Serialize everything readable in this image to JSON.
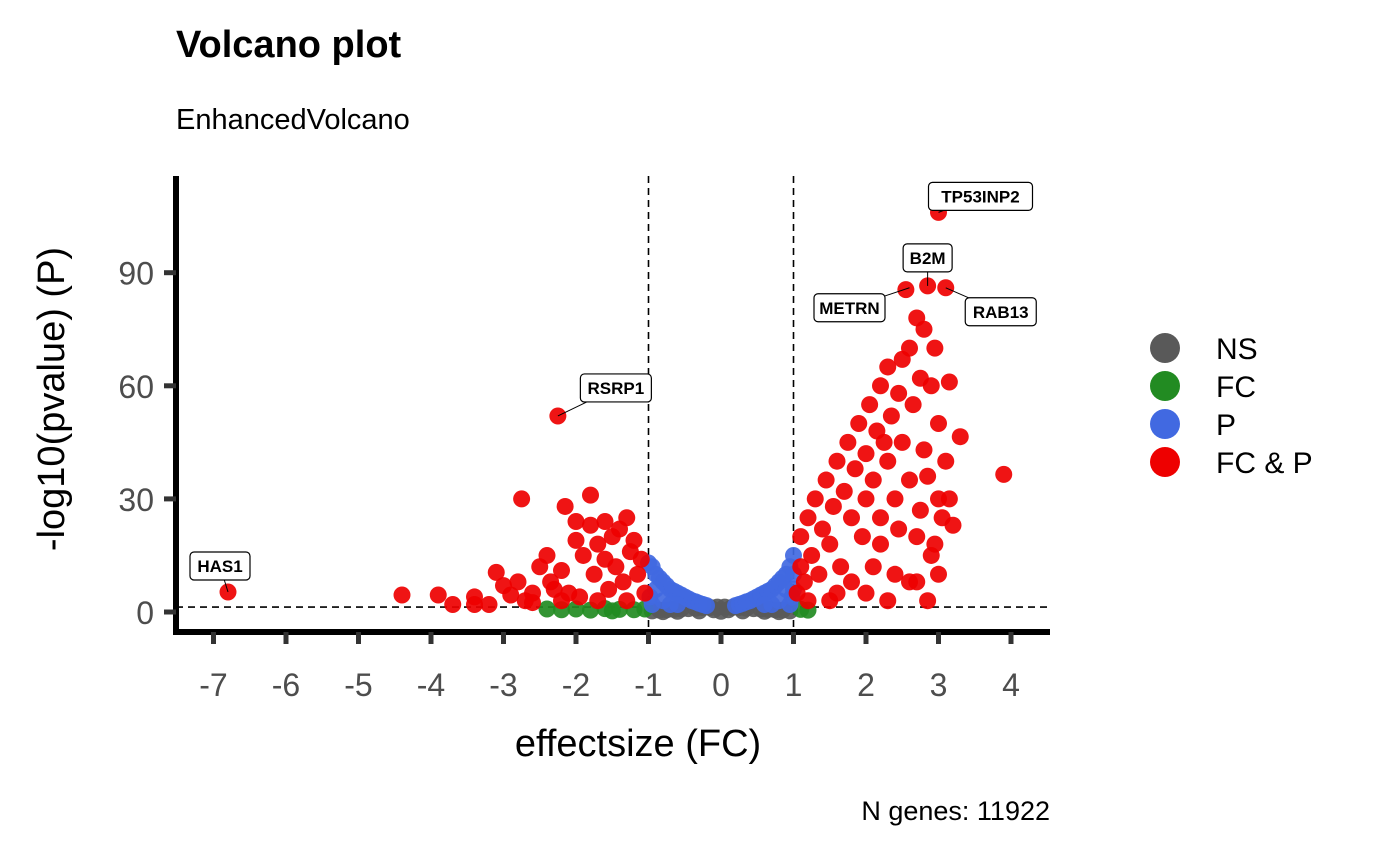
{
  "chart_data": {
    "type": "scatter",
    "title": "Volcano plot",
    "subtitle": "EnhancedVolcano",
    "caption": "N genes: 11922",
    "xlabel": "effectsize (FC)",
    "ylabel": "-log10(pvalue) (P)",
    "xlim": [
      -7.5,
      4.5
    ],
    "ylim": [
      -5,
      116
    ],
    "x_ticks": [
      -7,
      -6,
      -5,
      -4,
      -3,
      -2,
      -1,
      0,
      1,
      2,
      3,
      4
    ],
    "y_ticks": [
      0,
      30,
      60,
      90
    ],
    "cutoffs": {
      "fc": [
        -1,
        1
      ],
      "p": 1.3
    },
    "legend": {
      "position": "right",
      "entries": [
        {
          "name": "NS",
          "color": "#595959"
        },
        {
          "name": "FC",
          "color": "#228B22"
        },
        {
          "name": "P",
          "color": "#4169E1"
        },
        {
          "name": "FC & P",
          "color": "#EE0000"
        }
      ]
    },
    "labels": [
      {
        "text": "HAS1",
        "x": -6.8,
        "y": 5.3
      },
      {
        "text": "RSRP1",
        "x": -2.25,
        "y": 52
      },
      {
        "text": "TP53INP2",
        "x": 3.0,
        "y": 106
      },
      {
        "text": "B2M",
        "x": 2.85,
        "y": 86.5
      },
      {
        "text": "METRN",
        "x": 2.6,
        "y": 86
      },
      {
        "text": "RAB13",
        "x": 3.1,
        "y": 86
      }
    ],
    "series": [
      {
        "name": "NS",
        "color": "#595959",
        "points": [
          [
            -0.95,
            0.3
          ],
          [
            -0.85,
            0.5
          ],
          [
            -0.75,
            0.6
          ],
          [
            -0.65,
            0.7
          ],
          [
            -0.55,
            0.8
          ],
          [
            -0.45,
            0.9
          ],
          [
            -0.35,
            1.0
          ],
          [
            -0.25,
            1.2
          ],
          [
            -0.15,
            1.2
          ],
          [
            -0.05,
            1.3
          ],
          [
            0.05,
            1.3
          ],
          [
            0.15,
            1.2
          ],
          [
            0.25,
            1.2
          ],
          [
            0.35,
            1.0
          ],
          [
            0.45,
            0.9
          ],
          [
            0.55,
            0.8
          ],
          [
            0.65,
            0.7
          ],
          [
            0.75,
            0.6
          ],
          [
            0.85,
            0.5
          ],
          [
            0.95,
            0.3
          ],
          [
            -0.6,
            0.2
          ],
          [
            -0.3,
            0.3
          ],
          [
            0,
            0.2
          ],
          [
            0.3,
            0.3
          ],
          [
            0.6,
            0.2
          ],
          [
            -0.1,
            0.6
          ],
          [
            0.1,
            0.6
          ],
          [
            -0.8,
            0.1
          ],
          [
            0.8,
            0.1
          ]
        ]
      },
      {
        "name": "FC",
        "color": "#228B22",
        "points": [
          [
            -2.2,
            0.6
          ],
          [
            -2.0,
            0.8
          ],
          [
            -1.8,
            0.5
          ],
          [
            -1.6,
            0.9
          ],
          [
            -1.4,
            0.7
          ],
          [
            -1.2,
            0.6
          ],
          [
            -1.05,
            0.8
          ],
          [
            -2.4,
            0.8
          ],
          [
            -1.5,
            0.3
          ],
          [
            1.1,
            0.7
          ],
          [
            1.2,
            0.5
          ]
        ]
      },
      {
        "name": "P",
        "color": "#4169E1",
        "points": [
          [
            -1.0,
            13
          ],
          [
            -0.95,
            12
          ],
          [
            -0.9,
            10
          ],
          [
            -0.85,
            9
          ],
          [
            -0.8,
            8
          ],
          [
            -0.75,
            7
          ],
          [
            -0.7,
            6
          ],
          [
            -0.65,
            5.5
          ],
          [
            -0.6,
            5
          ],
          [
            -0.55,
            4.5
          ],
          [
            -0.5,
            4
          ],
          [
            -0.45,
            3.5
          ],
          [
            -0.4,
            3
          ],
          [
            -0.35,
            2.7
          ],
          [
            -0.3,
            2.3
          ],
          [
            -0.25,
            2
          ],
          [
            -0.2,
            1.7
          ],
          [
            -0.98,
            4
          ],
          [
            -0.95,
            2
          ],
          [
            -0.9,
            6
          ],
          [
            -0.8,
            3
          ],
          [
            -0.7,
            2
          ],
          [
            -0.6,
            2
          ],
          [
            0.2,
            1.7
          ],
          [
            0.25,
            2
          ],
          [
            0.3,
            2.3
          ],
          [
            0.35,
            2.7
          ],
          [
            0.4,
            3
          ],
          [
            0.45,
            3.5
          ],
          [
            0.5,
            4
          ],
          [
            0.55,
            4.5
          ],
          [
            0.6,
            5
          ],
          [
            0.65,
            5.5
          ],
          [
            0.7,
            6
          ],
          [
            0.75,
            7
          ],
          [
            0.8,
            8
          ],
          [
            0.85,
            9
          ],
          [
            0.9,
            10
          ],
          [
            0.95,
            12
          ],
          [
            1.0,
            15
          ],
          [
            0.98,
            4
          ],
          [
            0.95,
            2
          ],
          [
            0.9,
            6
          ],
          [
            0.8,
            3
          ],
          [
            0.7,
            2
          ],
          [
            0.6,
            2
          ],
          [
            1.0,
            10
          ],
          [
            1.0,
            6
          ]
        ]
      },
      {
        "name": "FC & P",
        "color": "#EE0000",
        "points": [
          [
            -6.8,
            5.3
          ],
          [
            -4.4,
            4.5
          ],
          [
            -3.9,
            4.5
          ],
          [
            -3.7,
            2
          ],
          [
            -3.4,
            4
          ],
          [
            -3.2,
            2
          ],
          [
            -3.1,
            10.5
          ],
          [
            -3.0,
            7
          ],
          [
            -2.9,
            4.5
          ],
          [
            -2.8,
            8
          ],
          [
            -2.75,
            30
          ],
          [
            -2.7,
            3
          ],
          [
            -2.6,
            5
          ],
          [
            -2.5,
            12
          ],
          [
            -2.4,
            15
          ],
          [
            -2.35,
            8
          ],
          [
            -2.3,
            6
          ],
          [
            -2.25,
            52
          ],
          [
            -2.2,
            11
          ],
          [
            -2.15,
            28
          ],
          [
            -2.1,
            5
          ],
          [
            -2.0,
            24
          ],
          [
            -2.0,
            19
          ],
          [
            -1.95,
            4
          ],
          [
            -1.9,
            15
          ],
          [
            -1.8,
            31
          ],
          [
            -1.8,
            23
          ],
          [
            -1.75,
            10
          ],
          [
            -1.7,
            18
          ],
          [
            -1.6,
            24
          ],
          [
            -1.6,
            14
          ],
          [
            -1.55,
            6
          ],
          [
            -1.5,
            20
          ],
          [
            -1.45,
            12
          ],
          [
            -1.4,
            22
          ],
          [
            -1.35,
            8
          ],
          [
            -1.3,
            25
          ],
          [
            -1.25,
            16
          ],
          [
            -1.2,
            19
          ],
          [
            -1.15,
            10
          ],
          [
            -1.1,
            14
          ],
          [
            -1.05,
            5
          ],
          [
            -1.3,
            3
          ],
          [
            -1.7,
            3
          ],
          [
            -2.2,
            3
          ],
          [
            -2.6,
            2.5
          ],
          [
            -3.4,
            2
          ],
          [
            1.05,
            5
          ],
          [
            1.1,
            12
          ],
          [
            1.1,
            20
          ],
          [
            1.15,
            8
          ],
          [
            1.2,
            25
          ],
          [
            1.25,
            15
          ],
          [
            1.3,
            30
          ],
          [
            1.35,
            10
          ],
          [
            1.4,
            22
          ],
          [
            1.45,
            35
          ],
          [
            1.5,
            18
          ],
          [
            1.55,
            28
          ],
          [
            1.6,
            40
          ],
          [
            1.65,
            12
          ],
          [
            1.7,
            32
          ],
          [
            1.75,
            45
          ],
          [
            1.8,
            25
          ],
          [
            1.85,
            38
          ],
          [
            1.9,
            50
          ],
          [
            1.95,
            20
          ],
          [
            2.0,
            42
          ],
          [
            2.0,
            30
          ],
          [
            2.05,
            55
          ],
          [
            2.1,
            35
          ],
          [
            2.15,
            48
          ],
          [
            2.2,
            60
          ],
          [
            2.2,
            25
          ],
          [
            2.25,
            45
          ],
          [
            2.3,
            65
          ],
          [
            2.3,
            40
          ],
          [
            2.35,
            52
          ],
          [
            2.4,
            30
          ],
          [
            2.45,
            58
          ],
          [
            2.5,
            67
          ],
          [
            2.5,
            45
          ],
          [
            2.55,
            85.5
          ],
          [
            2.6,
            70
          ],
          [
            2.6,
            35
          ],
          [
            2.65,
            55
          ],
          [
            2.7,
            78
          ],
          [
            2.7,
            20
          ],
          [
            2.75,
            62
          ],
          [
            2.8,
            75
          ],
          [
            2.8,
            43
          ],
          [
            2.85,
            86.5
          ],
          [
            2.9,
            60
          ],
          [
            2.9,
            15
          ],
          [
            2.95,
            70
          ],
          [
            3.0,
            106
          ],
          [
            3.0,
            50
          ],
          [
            3.0,
            30
          ],
          [
            3.05,
            25
          ],
          [
            3.1,
            86
          ],
          [
            3.1,
            40
          ],
          [
            3.15,
            61
          ],
          [
            3.2,
            23
          ],
          [
            3.3,
            46.5
          ],
          [
            3.9,
            36.5
          ],
          [
            2.7,
            8
          ],
          [
            2.85,
            3
          ],
          [
            3.0,
            10
          ],
          [
            2.3,
            3
          ],
          [
            1.5,
            3
          ],
          [
            1.2,
            3
          ],
          [
            1.8,
            8
          ],
          [
            2.1,
            12
          ],
          [
            2.4,
            10
          ],
          [
            2.6,
            8
          ],
          [
            2.0,
            5
          ],
          [
            1.6,
            5
          ],
          [
            2.2,
            18
          ],
          [
            2.45,
            22
          ],
          [
            2.85,
            36
          ],
          [
            2.95,
            18
          ],
          [
            3.15,
            30
          ],
          [
            2.75,
            27
          ]
        ]
      }
    ]
  }
}
